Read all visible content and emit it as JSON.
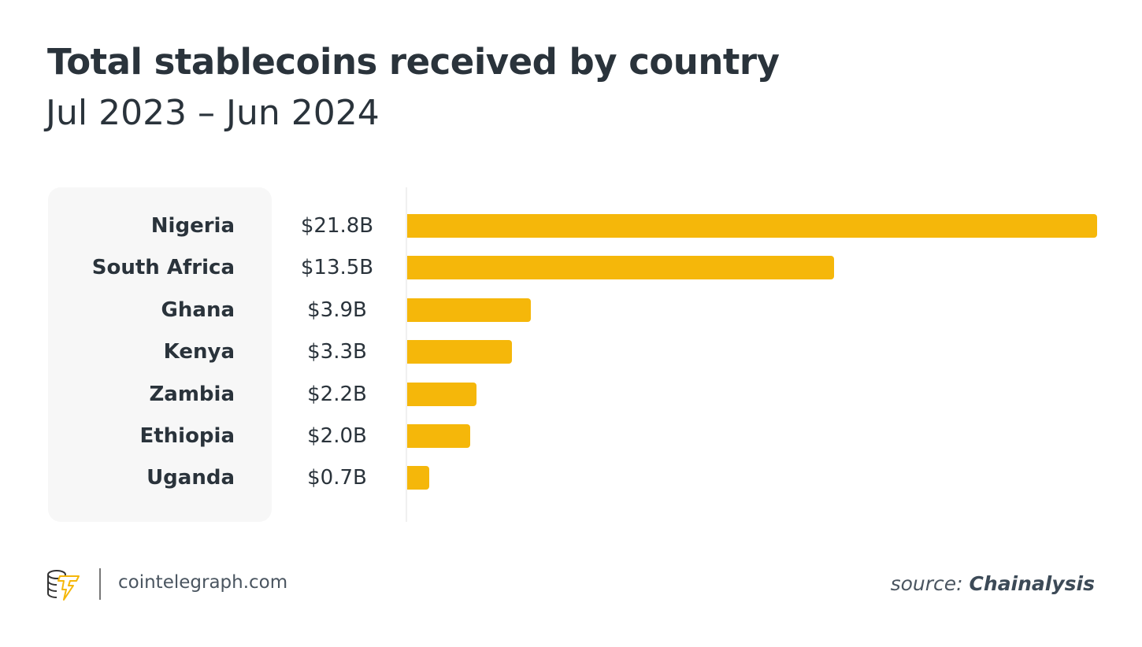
{
  "chart_data": {
    "type": "bar",
    "orientation": "horizontal",
    "title": "Total stablecoins received by country",
    "subtitle": "Jul 2023 – Jun 2024",
    "categories": [
      "Nigeria",
      "South Africa",
      "Ghana",
      "Kenya",
      "Zambia",
      "Ethiopia",
      "Uganda"
    ],
    "values": [
      21.8,
      13.5,
      3.9,
      3.3,
      2.2,
      2.0,
      0.7
    ],
    "value_labels": [
      "$21.8B",
      "$13.5B",
      "$3.9B",
      "$3.3B",
      "$2.2B",
      "$2.0B",
      "$0.7B"
    ],
    "unit": "USD billions",
    "xlim": [
      0,
      21.8
    ],
    "grid": false,
    "bar_color": "#f5b70a"
  },
  "footer": {
    "site": "cointelegraph.com",
    "source_prefix": "source:",
    "source_name": "Chainalysis",
    "logo": "cointelegraph-logo"
  }
}
